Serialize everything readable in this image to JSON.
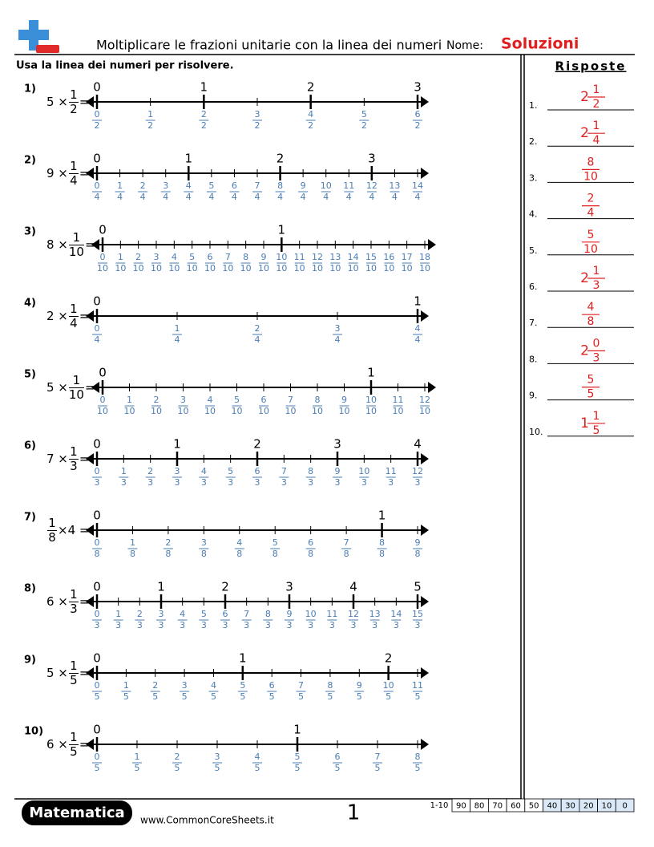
{
  "header": {
    "title": "Moltiplicare le frazioni unitarie con la linea dei numeri",
    "name_label": "Nome:",
    "solutions": "Soluzioni"
  },
  "instructions": "Usa la linea dei numeri per risolvere.",
  "answers_title": "Risposte",
  "problems": [
    {
      "label": "1)",
      "expression": [
        "5 ×",
        {
          "num": "1",
          "den": "2"
        },
        "="
      ],
      "line": {
        "wholes": [
          "0",
          "1",
          "2",
          "3"
        ],
        "denominator": "2",
        "numerators": [
          "0",
          "1",
          "2",
          "3",
          "4",
          "5",
          "6"
        ]
      }
    },
    {
      "label": "2)",
      "expression": [
        "9 ×",
        {
          "num": "1",
          "den": "4"
        },
        "="
      ],
      "line": {
        "wholes": [
          "0",
          "1",
          "2",
          "3"
        ],
        "denominator": "4",
        "numerators": [
          "0",
          "1",
          "2",
          "3",
          "4",
          "5",
          "6",
          "7",
          "8",
          "9",
          "10",
          "11",
          "12",
          "13",
          "14"
        ]
      }
    },
    {
      "label": "3)",
      "expression": [
        "8 ×",
        {
          "num": "1",
          "den": "10"
        },
        "="
      ],
      "line": {
        "wholes": [
          "0",
          "1"
        ],
        "denominator": "10",
        "numerators": [
          "0",
          "1",
          "2",
          "3",
          "4",
          "5",
          "6",
          "7",
          "8",
          "9",
          "10",
          "11",
          "12",
          "13",
          "14",
          "15",
          "16",
          "17",
          "18"
        ]
      }
    },
    {
      "label": "4)",
      "expression": [
        "2 ×",
        {
          "num": "1",
          "den": "4"
        },
        "="
      ],
      "line": {
        "wholes": [
          "0",
          "1"
        ],
        "denominator": "4",
        "numerators": [
          "0",
          "1",
          "2",
          "3",
          "4"
        ]
      }
    },
    {
      "label": "5)",
      "expression": [
        "5 ×",
        {
          "num": "1",
          "den": "10"
        },
        "="
      ],
      "line": {
        "wholes": [
          "0",
          "1"
        ],
        "denominator": "10",
        "numerators": [
          "0",
          "1",
          "2",
          "3",
          "4",
          "5",
          "6",
          "7",
          "8",
          "9",
          "10",
          "11",
          "12"
        ]
      }
    },
    {
      "label": "6)",
      "expression": [
        "7 ×",
        {
          "num": "1",
          "den": "3"
        },
        "="
      ],
      "line": {
        "wholes": [
          "0",
          "1",
          "2",
          "3",
          "4"
        ],
        "denominator": "3",
        "numerators": [
          "0",
          "1",
          "2",
          "3",
          "4",
          "5",
          "6",
          "7",
          "8",
          "9",
          "10",
          "11",
          "12"
        ]
      }
    },
    {
      "label": "7)",
      "expression": [
        {
          "num": "1",
          "den": "8"
        },
        "×4 ="
      ],
      "line": {
        "wholes": [
          "0",
          "1"
        ],
        "denominator": "8",
        "numerators": [
          "0",
          "1",
          "2",
          "3",
          "4",
          "5",
          "6",
          "7",
          "8",
          "9"
        ]
      }
    },
    {
      "label": "8)",
      "expression": [
        "6 ×",
        {
          "num": "1",
          "den": "3"
        },
        "="
      ],
      "line": {
        "wholes": [
          "0",
          "1",
          "2",
          "3",
          "4",
          "5"
        ],
        "denominator": "3",
        "numerators": [
          "0",
          "1",
          "2",
          "3",
          "4",
          "5",
          "6",
          "7",
          "8",
          "9",
          "10",
          "11",
          "12",
          "13",
          "14",
          "15"
        ]
      }
    },
    {
      "label": "9)",
      "expression": [
        "5 ×",
        {
          "num": "1",
          "den": "5"
        },
        "="
      ],
      "line": {
        "wholes": [
          "0",
          "1",
          "2"
        ],
        "denominator": "5",
        "numerators": [
          "0",
          "1",
          "2",
          "3",
          "4",
          "5",
          "6",
          "7",
          "8",
          "9",
          "10",
          "11"
        ]
      }
    },
    {
      "label": "10)",
      "expression": [
        "6 ×",
        {
          "num": "1",
          "den": "5"
        },
        "="
      ],
      "line": {
        "wholes": [
          "0",
          "1"
        ],
        "denominator": "5",
        "numerators": [
          "0",
          "1",
          "2",
          "3",
          "4",
          "5",
          "6",
          "7",
          "8"
        ]
      }
    }
  ],
  "answers": [
    {
      "label": "1.",
      "whole": "2",
      "num": "1",
      "den": "2"
    },
    {
      "label": "2.",
      "whole": "2",
      "num": "1",
      "den": "4"
    },
    {
      "label": "3.",
      "num": "8",
      "den": "10"
    },
    {
      "label": "4.",
      "num": "2",
      "den": "4"
    },
    {
      "label": "5.",
      "num": "5",
      "den": "10"
    },
    {
      "label": "6.",
      "whole": "2",
      "num": "1",
      "den": "3"
    },
    {
      "label": "7.",
      "num": "4",
      "den": "8"
    },
    {
      "label": "8.",
      "whole": "2",
      "num": "0",
      "den": "3"
    },
    {
      "label": "9.",
      "num": "5",
      "den": "5"
    },
    {
      "label": "10.",
      "whole": "1",
      "num": "1",
      "den": "5"
    }
  ],
  "footer": {
    "brand": "Matematica",
    "url": "www.CommonCoreSheets.it",
    "page": "1",
    "score_label": "1-10",
    "scores": [
      "90",
      "80",
      "70",
      "60",
      "50",
      "40",
      "30",
      "20",
      "10",
      "0"
    ]
  }
}
